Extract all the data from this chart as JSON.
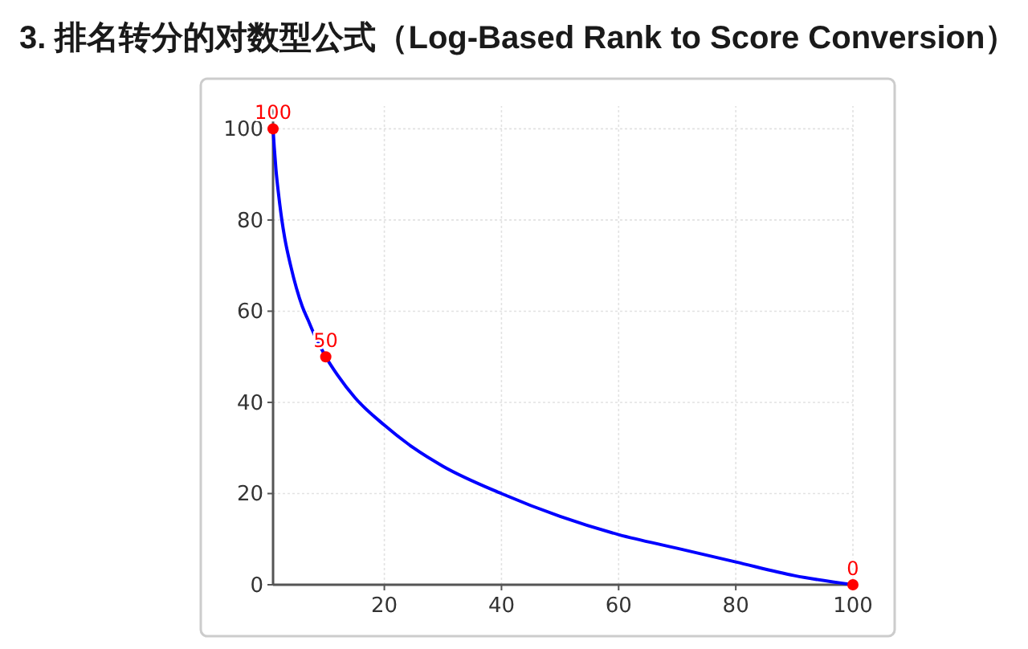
{
  "chart_data": {
    "type": "line",
    "title": "3. 排名转分的对数型公式（Log-Based Rank to Score Conversion）",
    "xlim": [
      1,
      100
    ],
    "xticks": [
      20,
      40,
      60,
      80,
      100
    ],
    "ylim": [
      0,
      105
    ],
    "yticks": [
      0,
      20,
      40,
      60,
      80,
      100
    ],
    "grid": true,
    "series": [
      {
        "type": "line",
        "color": "#0000ff",
        "marker": "none",
        "line_style": "solid",
        "x": [
          1,
          1.2,
          1.5,
          2,
          2.5,
          3,
          4,
          5,
          6,
          7,
          8,
          10,
          12,
          15,
          20,
          25,
          30,
          40,
          50,
          60,
          70,
          80,
          90,
          100
        ],
        "values": [
          100,
          96,
          91,
          85,
          80,
          76,
          70,
          65,
          61,
          58,
          55,
          50,
          46,
          41,
          35,
          30,
          26,
          20,
          15,
          11,
          8,
          5,
          2,
          0
        ]
      },
      {
        "type": "scatter",
        "color": "#ff0000",
        "marker": "circle",
        "data_labels": true,
        "x": [
          1,
          10,
          100
        ],
        "values": [
          100,
          50,
          0
        ]
      }
    ]
  }
}
